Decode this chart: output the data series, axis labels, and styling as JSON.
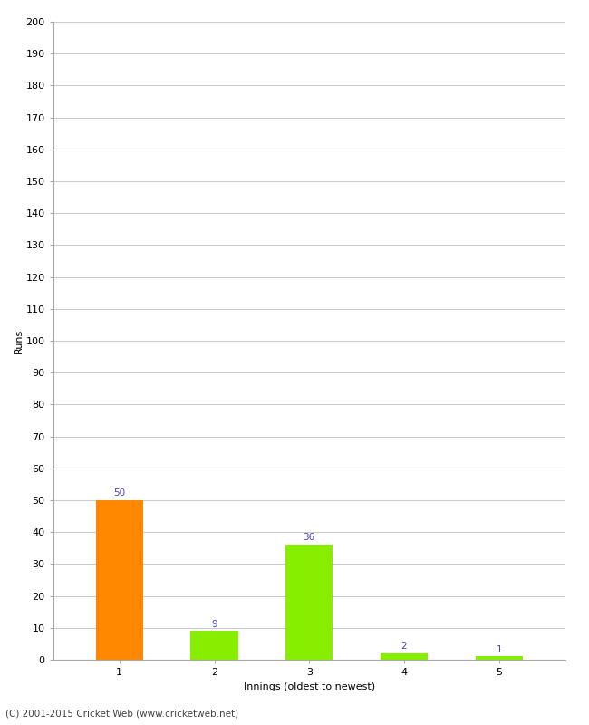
{
  "categories": [
    "1",
    "2",
    "3",
    "4",
    "5"
  ],
  "values": [
    50,
    9,
    36,
    2,
    1
  ],
  "bar_colors": [
    "#ff8800",
    "#88ee00",
    "#88ee00",
    "#88ee00",
    "#88ee00"
  ],
  "xlabel": "Innings (oldest to newest)",
  "ylabel": "Runs",
  "ylim": [
    0,
    200
  ],
  "yticks": [
    0,
    10,
    20,
    30,
    40,
    50,
    60,
    70,
    80,
    90,
    100,
    110,
    120,
    130,
    140,
    150,
    160,
    170,
    180,
    190,
    200
  ],
  "label_color": "#4444cc",
  "label_fontsize": 7.5,
  "axis_fontsize": 8,
  "tick_fontsize": 8,
  "footer": "(C) 2001-2015 Cricket Web (www.cricketweb.net)",
  "footer_fontsize": 7.5,
  "background_color": "#ffffff",
  "grid_color": "#cccccc",
  "bar_width": 0.5
}
